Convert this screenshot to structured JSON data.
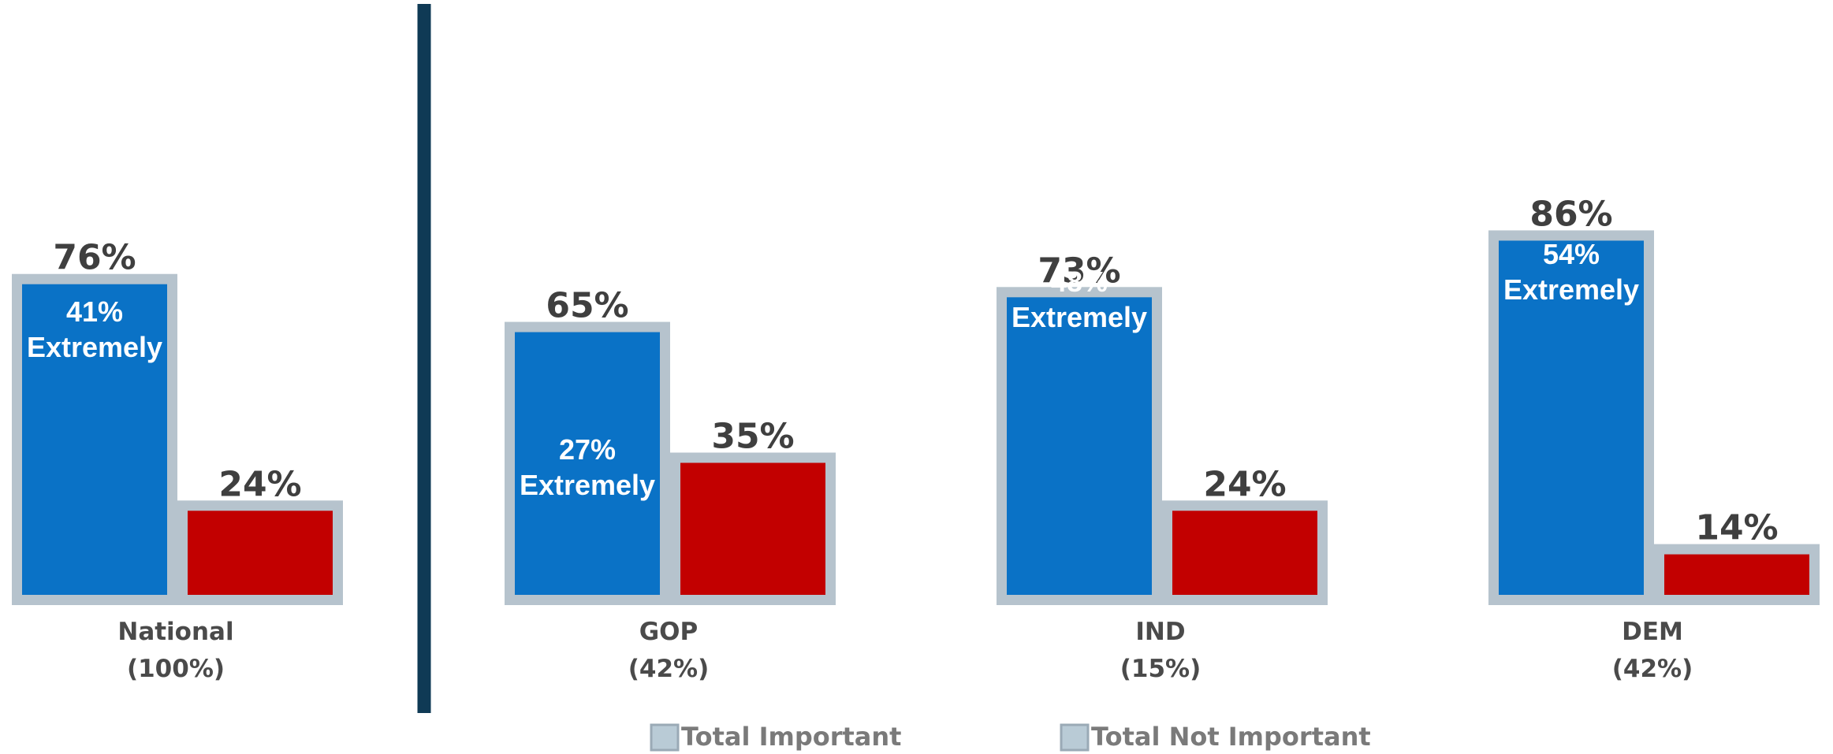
{
  "chart_data": {
    "type": "bar",
    "categories": [
      "National",
      "GOP",
      "IND",
      "DEM"
    ],
    "category_shares": [
      "(100%)",
      "(42%)",
      "(15%)",
      "(42%)"
    ],
    "series": [
      {
        "name": "Total Important",
        "values": [
          76,
          65,
          73,
          86
        ]
      },
      {
        "name": "Total Not Important",
        "values": [
          24,
          35,
          24,
          14
        ]
      }
    ],
    "value_labels": {
      "important": [
        "76%",
        "65%",
        "73%",
        "86%"
      ],
      "not_important": [
        "24%",
        "35%",
        "24%",
        "14%"
      ]
    },
    "extremely": [
      {
        "pct": "41%",
        "text": "Extremely"
      },
      {
        "pct": "27%",
        "text": "Extremely"
      },
      {
        "pct": "48%",
        "text": "Extremely"
      },
      {
        "pct": "54%",
        "text": "Extremely"
      }
    ],
    "ylim": [
      0,
      100
    ],
    "grid": false,
    "legend_position": "bottom-center"
  },
  "colors": {
    "important": "#0a72c6",
    "not_important": "#c20000",
    "border": "#b6c3cd",
    "divider": "#0f3a55",
    "legend_swatch": "#b9cbd6"
  }
}
